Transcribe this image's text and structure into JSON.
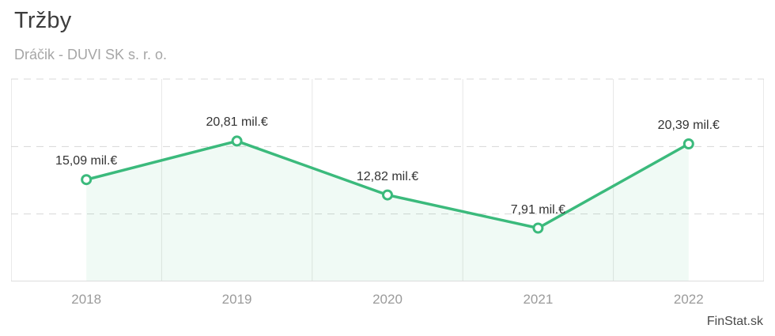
{
  "header": {
    "title": "Tržby",
    "subtitle": "Dráčik - DUVI SK s. r. o."
  },
  "watermark": "FinStat.sk",
  "chart_data": {
    "type": "line",
    "title": "Tržby",
    "subtitle": "Dráčik - DUVI SK s. r. o.",
    "categories": [
      "2018",
      "2019",
      "2020",
      "2021",
      "2022"
    ],
    "series": [
      {
        "name": "Tržby",
        "values": [
          15.09,
          20.81,
          12.82,
          7.91,
          20.39
        ]
      }
    ],
    "point_labels": [
      "15,09 mil.€",
      "20,81 mil.€",
      "12,82 mil.€",
      "7,91 mil.€",
      "20,39 mil.€"
    ],
    "unit": "mil.€",
    "ylim": [
      0,
      30
    ],
    "yticks": [
      10,
      20,
      30
    ],
    "grid": "horizontal dashed lines, vertical solid band separators, no y-axis tick labels",
    "legend": "none",
    "colors": {
      "line": "#3bba7c",
      "area": "rgba(59, 186, 124, 0.08)",
      "marker_fill": "#ffffff",
      "grid_vertical": "#e7e7e7",
      "grid_dashed": "#d8d8d8",
      "axis_line": "#dcdcdc",
      "border": "#e9e9e9",
      "title_text": "#3d3d3d",
      "subtitle_text": "#a6a6a6",
      "label_text": "#333333",
      "tick_text": "#9b9b9b",
      "watermark_text": "#4a4a4a"
    }
  }
}
